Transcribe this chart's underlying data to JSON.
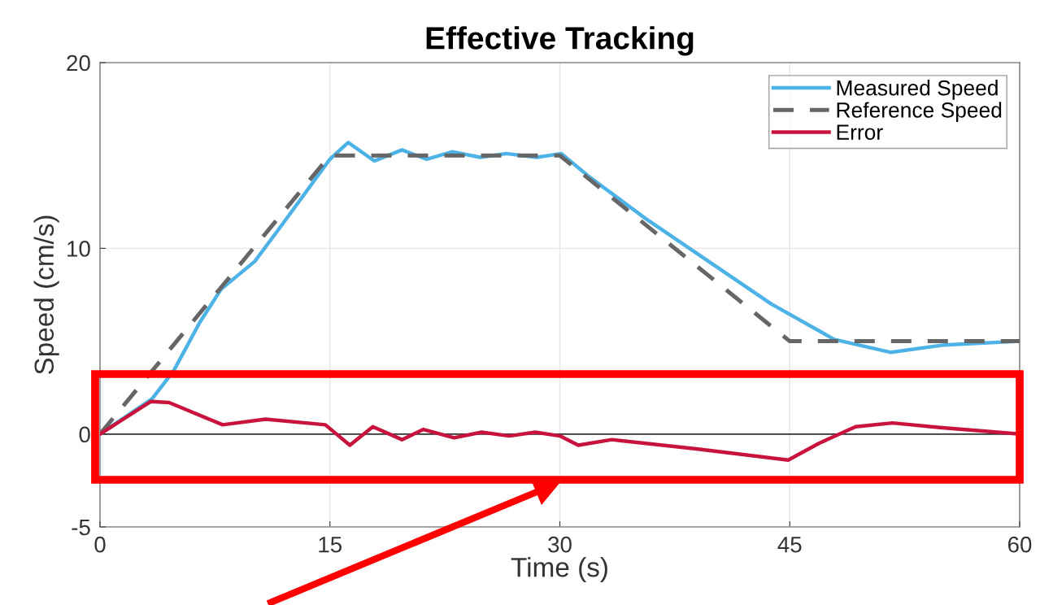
{
  "chart_data": {
    "type": "line",
    "title": "Effective Tracking",
    "xlabel": "Time (s)",
    "ylabel": "Speed (cm/s)",
    "xlim": [
      0,
      60
    ],
    "xticks": [
      0,
      15,
      30,
      45,
      60
    ],
    "ylim": [
      -5,
      20
    ],
    "yticks": [
      -5,
      0,
      10,
      20
    ],
    "grid": true,
    "legend": "top right",
    "marker": "none",
    "ref_lines": [
      {
        "axis": "y",
        "value": 0,
        "color": "#333333"
      }
    ],
    "series": [
      {
        "name": "Measured Speed",
        "color": "#4db3e6",
        "line_style": "solid",
        "x": [
          0,
          3.4,
          4.8,
          6.5,
          7.9,
          10.1,
          11.9,
          15.0,
          16.2,
          17.9,
          19.7,
          21.3,
          23.0,
          24.8,
          26.5,
          28.5,
          30.1,
          32.0,
          35.6,
          39.7,
          43.8,
          47.9,
          51.6,
          55.1,
          60
        ],
        "values": [
          0,
          1.9,
          3.4,
          6.0,
          7.8,
          9.3,
          11.3,
          14.8,
          15.7,
          14.7,
          15.3,
          14.8,
          15.2,
          14.9,
          15.1,
          14.9,
          15.1,
          13.8,
          11.6,
          9.3,
          7.0,
          5.1,
          4.4,
          4.8,
          5.0
        ]
      },
      {
        "name": "Reference Speed",
        "color": "#666666",
        "line_style": "dashed",
        "x": [
          0,
          15,
          30,
          45,
          60
        ],
        "values": [
          0,
          15,
          15,
          5,
          5
        ]
      },
      {
        "name": "Error",
        "color": "#c8143c",
        "line_style": "solid",
        "x": [
          0,
          3.3,
          4.5,
          8.0,
          10.8,
          14.7,
          16.3,
          17.8,
          19.7,
          21.1,
          23.1,
          24.9,
          26.7,
          28.4,
          30.0,
          31.2,
          33.4,
          38.9,
          44.9,
          46.9,
          49.3,
          51.7,
          54.8,
          60
        ],
        "values": [
          0,
          1.75,
          1.7,
          0.5,
          0.8,
          0.5,
          -0.6,
          0.4,
          -0.3,
          0.25,
          -0.2,
          0.1,
          -0.1,
          0.1,
          -0.1,
          -0.6,
          -0.3,
          -0.8,
          -1.4,
          -0.5,
          0.4,
          0.6,
          0.35,
          0
        ]
      }
    ]
  }
}
